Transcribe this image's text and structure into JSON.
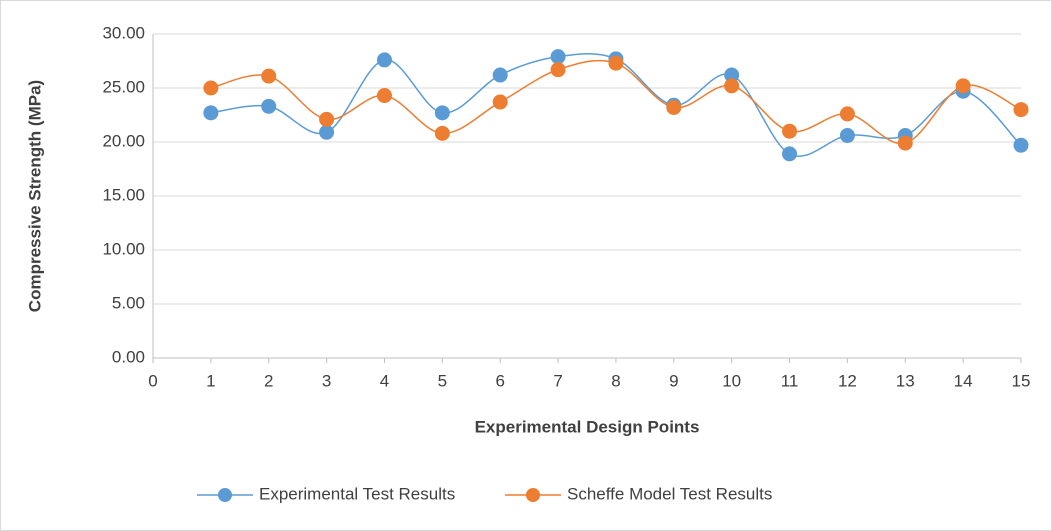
{
  "chart_data": {
    "type": "scatter-smooth",
    "x_label": "Experimental Design Points",
    "y_label": "Compressive Strength (MPa)",
    "x": [
      1,
      2,
      3,
      4,
      5,
      6,
      7,
      8,
      9,
      10,
      11,
      12,
      13,
      14,
      15
    ],
    "series": [
      {
        "name": "Experimental Test Results",
        "color": "#5b9bd5",
        "values": [
          22.7,
          23.3,
          20.9,
          27.6,
          22.7,
          26.2,
          27.9,
          27.7,
          23.4,
          26.2,
          18.9,
          20.6,
          20.6,
          24.7,
          19.7
        ]
      },
      {
        "name": "Scheffe Model Test Results",
        "color": "#ed7d31",
        "values": [
          25.0,
          26.1,
          22.1,
          24.3,
          20.8,
          23.7,
          26.7,
          27.3,
          23.2,
          25.2,
          21.0,
          22.6,
          19.9,
          25.2,
          23.0
        ]
      }
    ],
    "xlim": [
      0,
      15
    ],
    "xticks": [
      0,
      1,
      2,
      3,
      4,
      5,
      6,
      7,
      8,
      9,
      10,
      11,
      12,
      13,
      14,
      15
    ],
    "ylim": [
      0,
      30
    ],
    "yticks": [
      {
        "value": 0,
        "label": "0.00"
      },
      {
        "value": 5,
        "label": "5.00"
      },
      {
        "value": 10,
        "label": "10.00"
      },
      {
        "value": 15,
        "label": "15.00"
      },
      {
        "value": 20,
        "label": "20.00"
      },
      {
        "value": 25,
        "label": "25.00"
      },
      {
        "value": 30,
        "label": "30.00"
      }
    ],
    "grid": true,
    "legend": "bottom"
  }
}
